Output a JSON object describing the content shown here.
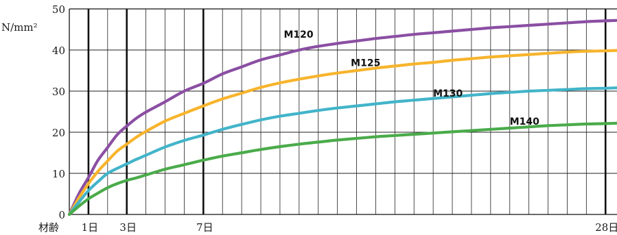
{
  "chart_data": {
    "type": "line",
    "unit_label": "N/mm²",
    "x_axis_title": "材齢",
    "xlim": [
      0,
      28.6
    ],
    "ylim": [
      0,
      50
    ],
    "y_ticks": [
      0,
      10,
      20,
      30,
      40,
      50
    ],
    "x_tick_labels": [
      {
        "x": 1,
        "label": "1日"
      },
      {
        "x": 3,
        "label": "3日"
      },
      {
        "x": 7,
        "label": "7日"
      },
      {
        "x": 28,
        "label": "28日"
      }
    ],
    "major_x_gridlines": [
      1,
      3,
      7,
      28
    ],
    "minor_x_gridline_step": 1,
    "grid": true,
    "series": [
      {
        "name": "M120",
        "color": "#8b4fa3",
        "label_at": [
          11.2,
          43
        ],
        "x": [
          0,
          0.5,
          1,
          1.5,
          2,
          2.5,
          3,
          3.5,
          4,
          5,
          6,
          7,
          8,
          9,
          10,
          11,
          12,
          13,
          14,
          15,
          16,
          17,
          18,
          19,
          20,
          21,
          22,
          23,
          24,
          25,
          26,
          27,
          28,
          28.6
        ],
        "values": [
          0,
          5,
          9,
          13.2,
          16.3,
          19.4,
          21.5,
          23.4,
          24.9,
          27.4,
          30.0,
          31.9,
          34.2,
          35.9,
          37.6,
          38.8,
          40.0,
          40.9,
          41.6,
          42.2,
          42.8,
          43.3,
          43.8,
          44.2,
          44.6,
          45.0,
          45.4,
          45.7,
          46.0,
          46.3,
          46.6,
          46.9,
          47.1,
          47.2
        ]
      },
      {
        "name": "M125",
        "color": "#f7b42c",
        "label_at": [
          14.7,
          36.1
        ],
        "x": [
          0,
          0.5,
          1,
          1.5,
          2,
          2.5,
          3,
          3.5,
          4,
          5,
          6,
          7,
          8,
          9,
          10,
          11,
          12,
          13,
          14,
          15,
          16,
          17,
          18,
          19,
          20,
          21,
          22,
          23,
          24,
          25,
          26,
          27,
          28,
          28.6
        ],
        "values": [
          0,
          4,
          7.5,
          10.5,
          13,
          15.4,
          17.1,
          18.8,
          20.2,
          22.7,
          24.6,
          26.4,
          28.1,
          29.5,
          30.9,
          32.0,
          32.9,
          33.7,
          34.4,
          35.0,
          35.6,
          36.1,
          36.6,
          37.0,
          37.5,
          37.9,
          38.3,
          38.6,
          38.9,
          39.2,
          39.5,
          39.7,
          39.8,
          39.9
        ]
      },
      {
        "name": "M130",
        "color": "#42b4c9",
        "label_at": [
          19.0,
          28.7
        ],
        "x": [
          0,
          0.5,
          1,
          1.5,
          2,
          2.5,
          3,
          3.5,
          4,
          5,
          6,
          7,
          8,
          9,
          10,
          11,
          12,
          13,
          14,
          15,
          16,
          17,
          18,
          19,
          20,
          21,
          22,
          23,
          24,
          25,
          26,
          27,
          28,
          28.6
        ],
        "values": [
          0,
          3,
          5.8,
          8,
          10,
          11.2,
          12.3,
          13.4,
          14.4,
          16.4,
          18.0,
          19.3,
          20.7,
          21.9,
          23.0,
          23.9,
          24.6,
          25.3,
          25.9,
          26.4,
          26.9,
          27.4,
          27.8,
          28.2,
          28.6,
          29.0,
          29.4,
          29.7,
          30.0,
          30.2,
          30.4,
          30.6,
          30.7,
          30.8
        ]
      },
      {
        "name": "M140",
        "color": "#4aab4a",
        "label_at": [
          23.0,
          21.8
        ],
        "x": [
          0,
          0.5,
          1,
          1.5,
          2,
          2.5,
          3,
          3.5,
          4,
          5,
          6,
          7,
          8,
          9,
          10,
          11,
          12,
          13,
          14,
          15,
          16,
          17,
          18,
          19,
          20,
          21,
          22,
          23,
          24,
          25,
          26,
          27,
          28,
          28.6
        ],
        "values": [
          0,
          2,
          3.8,
          5.2,
          6.5,
          7.5,
          8.3,
          8.9,
          9.6,
          11.0,
          12.1,
          13.2,
          14.2,
          15.0,
          15.8,
          16.5,
          17.1,
          17.6,
          18.1,
          18.5,
          18.9,
          19.2,
          19.5,
          19.8,
          20.1,
          20.4,
          20.7,
          21.0,
          21.3,
          21.6,
          21.8,
          22.0,
          22.1,
          22.2
        ]
      }
    ]
  }
}
